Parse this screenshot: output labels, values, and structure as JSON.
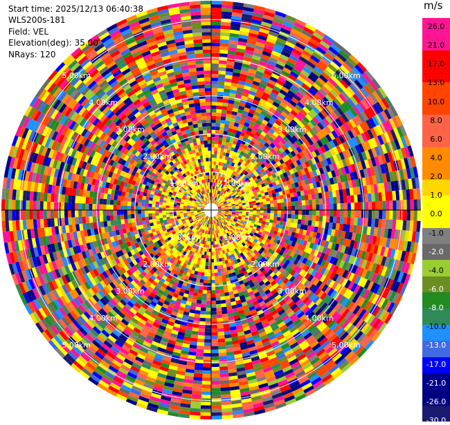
{
  "header": {
    "start_time_label": "Start time:",
    "start_time": "2025/12/13 06:40:38",
    "instrument": "WLS200s-181",
    "field_label": "Field:",
    "field": "VEL",
    "elevation_label": "Elevation(deg):",
    "elevation": "35.00",
    "nrays_label": "NRays:",
    "nrays": "120"
  },
  "colorbar": {
    "unit": "m/s",
    "ticks": [
      "26.0",
      "21.0",
      "17.0",
      "13.0",
      "10.0",
      "8.0",
      "6.0",
      "4.0",
      "2.0",
      "1.0",
      "0.0",
      "-1.0",
      "-2.0",
      "-4.0",
      "-6.0",
      "-8.0",
      "-10.0",
      "-13.0",
      "-17.0",
      "-21.0",
      "-26.0",
      "-30.0"
    ],
    "colors": [
      "#ff1493",
      "#ff1493",
      "#ff0000",
      "#ff0000",
      "#ff4500",
      "#ff4500",
      "#ff6347",
      "#ff6347",
      "#ff8c00",
      "#ff8c00",
      "#ffd700",
      "#ffff00",
      "#ffff00",
      "#808080",
      "#696969",
      "#9acd32",
      "#6b8e23",
      "#228b22",
      "#2e8b57",
      "#1e90ff",
      "#4169e1",
      "#0000ff",
      "#00008b",
      "#000080",
      "#191970"
    ]
  },
  "chart_data": {
    "type": "ppi",
    "field": "VEL",
    "units": "m/s",
    "nrays": 120,
    "vmin": -30.0,
    "vmax": 30.0,
    "range_rings_km": [
      1,
      2,
      3,
      4,
      5
    ],
    "range_ring_labels": [
      "1.00km",
      "2.00km",
      "3.00km",
      "4.00km",
      "5.00km"
    ],
    "max_range_km": 5.5,
    "background_noise": "random velocity values across full color range (noise-dominated beyond near range)",
    "near_range_features": "yellow/red-orange cluster around origin within ~1 km"
  }
}
